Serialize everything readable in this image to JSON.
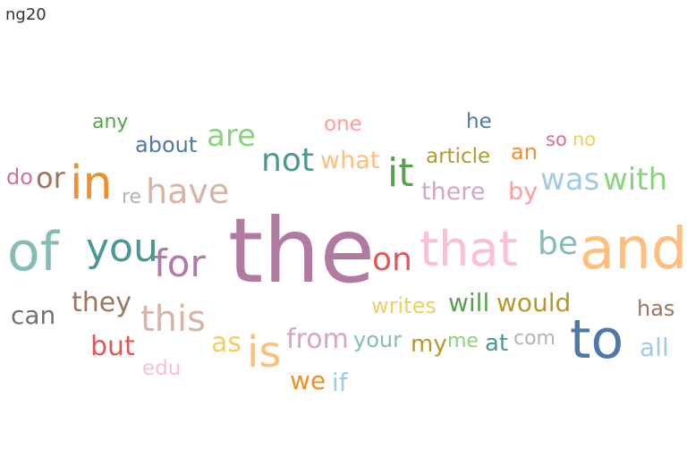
{
  "title": "ng20",
  "chart_data": {
    "type": "word_cloud",
    "words": [
      {
        "text": "the",
        "color": "#b07aa1",
        "weight": 100
      },
      {
        "text": "and",
        "color": "#ffbe7d",
        "weight": 64
      },
      {
        "text": "of",
        "color": "#86bcb6",
        "weight": 60
      },
      {
        "text": "to",
        "color": "#4e79a7",
        "weight": 60
      },
      {
        "text": "that",
        "color": "#fabfd2",
        "weight": 54
      },
      {
        "text": "in",
        "color": "#f28e2b",
        "weight": 52
      },
      {
        "text": "is",
        "color": "#ffbe7d",
        "weight": 48
      },
      {
        "text": "you",
        "color": "#499894",
        "weight": 44
      },
      {
        "text": "it",
        "color": "#59a14f",
        "weight": 44
      },
      {
        "text": "for",
        "color": "#b07aa1",
        "weight": 42
      },
      {
        "text": "this",
        "color": "#d7b5a6",
        "weight": 40
      },
      {
        "text": "have",
        "color": "#d7b5a6",
        "weight": 38
      },
      {
        "text": "on",
        "color": "#e15759",
        "weight": 36
      },
      {
        "text": "be",
        "color": "#86bcb6",
        "weight": 36
      },
      {
        "text": "not",
        "color": "#499894",
        "weight": 36
      },
      {
        "text": "was",
        "color": "#a0cbe8",
        "weight": 34
      },
      {
        "text": "with",
        "color": "#8cd17d",
        "weight": 34
      },
      {
        "text": "are",
        "color": "#8cd17d",
        "weight": 34
      },
      {
        "text": "or",
        "color": "#9d7660",
        "weight": 32
      },
      {
        "text": "they",
        "color": "#9d7660",
        "weight": 30
      },
      {
        "text": "as",
        "color": "#f1ce63",
        "weight": 30
      },
      {
        "text": "from",
        "color": "#d4a6c8",
        "weight": 30
      },
      {
        "text": "but",
        "color": "#e15759",
        "weight": 30
      },
      {
        "text": "can",
        "color": "#79706e",
        "weight": 28
      },
      {
        "text": "will",
        "color": "#59a14f",
        "weight": 28
      },
      {
        "text": "would",
        "color": "#b6992d",
        "weight": 28
      },
      {
        "text": "all",
        "color": "#a0cbe8",
        "weight": 28
      },
      {
        "text": "we",
        "color": "#f28e2b",
        "weight": 28
      },
      {
        "text": "if",
        "color": "#a0cbe8",
        "weight": 28
      },
      {
        "text": "there",
        "color": "#d4a6c8",
        "weight": 27
      },
      {
        "text": "what",
        "color": "#ffbe7d",
        "weight": 27
      },
      {
        "text": "by",
        "color": "#ff9d9a",
        "weight": 27
      },
      {
        "text": "at",
        "color": "#499894",
        "weight": 26
      },
      {
        "text": "my",
        "color": "#b6992d",
        "weight": 26
      },
      {
        "text": "your",
        "color": "#86bcb6",
        "weight": 24
      },
      {
        "text": "writes",
        "color": "#f1ce63",
        "weight": 24
      },
      {
        "text": "about",
        "color": "#4e79a7",
        "weight": 24
      },
      {
        "text": "do",
        "color": "#d37295",
        "weight": 24
      },
      {
        "text": "an",
        "color": "#f28e2b",
        "weight": 24
      },
      {
        "text": "has",
        "color": "#9d7660",
        "weight": 24
      },
      {
        "text": "article",
        "color": "#b6992d",
        "weight": 23
      },
      {
        "text": "one",
        "color": "#ff9d9a",
        "weight": 23
      },
      {
        "text": "he",
        "color": "#4e79a7",
        "weight": 23
      },
      {
        "text": "edu",
        "color": "#fabfd2",
        "weight": 23
      },
      {
        "text": "any",
        "color": "#59a14f",
        "weight": 22
      },
      {
        "text": "re",
        "color": "#bab0ac",
        "weight": 22
      },
      {
        "text": "me",
        "color": "#8cd17d",
        "weight": 22
      },
      {
        "text": "com",
        "color": "#bab0ac",
        "weight": 22
      },
      {
        "text": "so",
        "color": "#d37295",
        "weight": 21
      },
      {
        "text": "no",
        "color": "#f1ce63",
        "weight": 21
      }
    ]
  }
}
